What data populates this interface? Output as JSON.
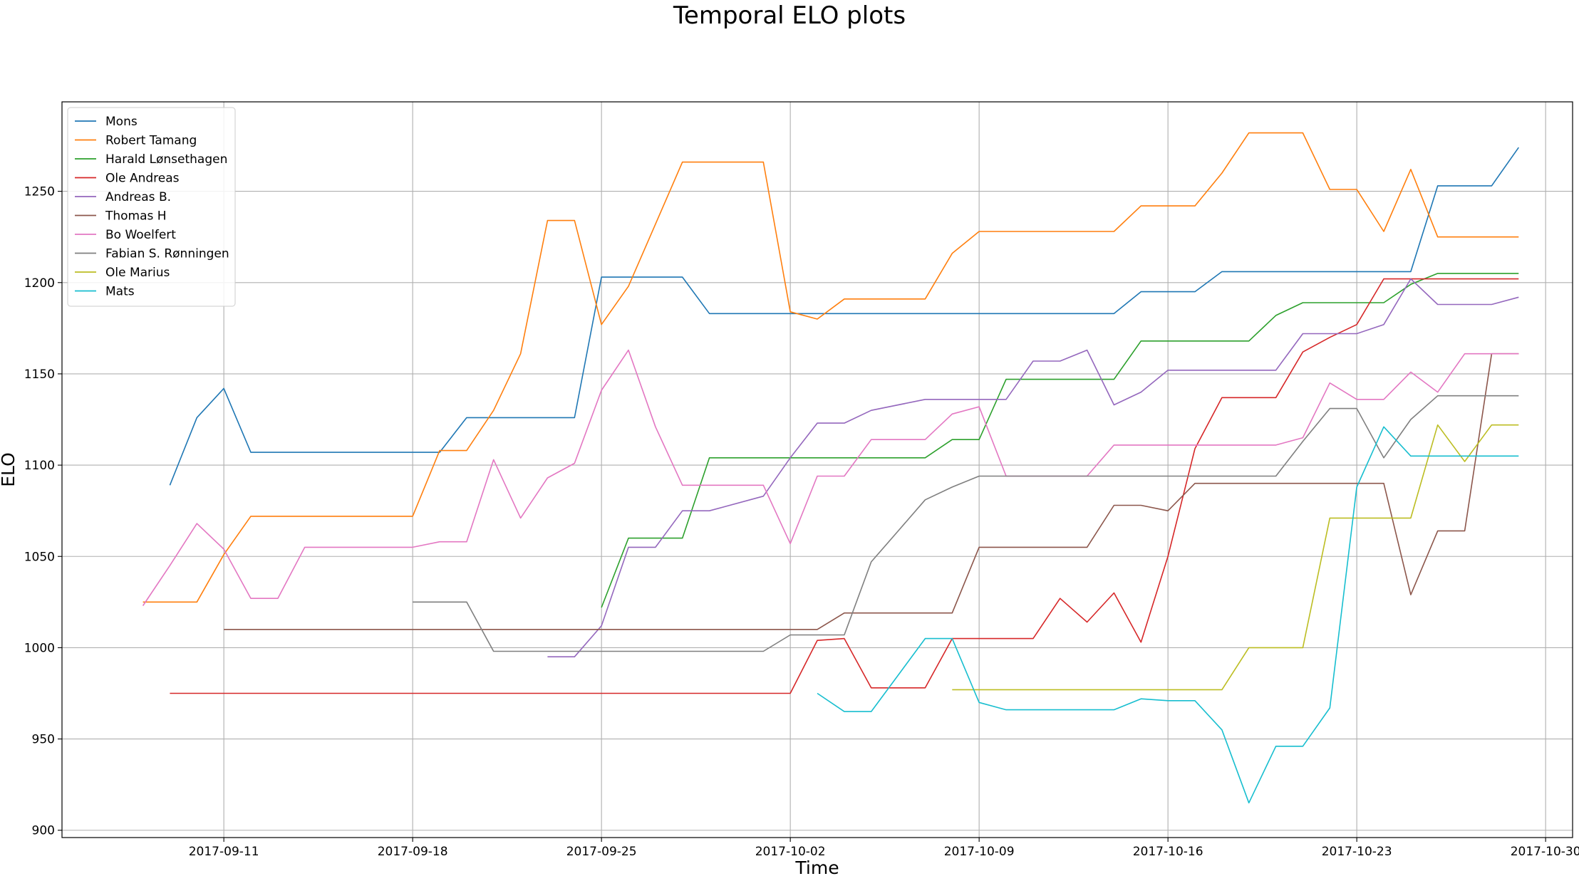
{
  "chart_data": {
    "type": "line",
    "title": "Temporal ELO plots",
    "xlabel": "Time",
    "ylabel": "ELO",
    "x_axis_type": "date",
    "xlim": [
      "2017-09-05",
      "2017-10-31"
    ],
    "ylim": [
      896,
      1299
    ],
    "x_ticks": [
      "2017-09-11",
      "2017-09-18",
      "2017-09-25",
      "2017-10-02",
      "2017-10-09",
      "2017-10-16",
      "2017-10-23",
      "2017-10-30"
    ],
    "y_ticks": [
      900,
      950,
      1000,
      1050,
      1100,
      1150,
      1200,
      1250
    ],
    "grid": true,
    "legend_position": "top-left",
    "series": [
      {
        "name": "Mons",
        "color": "#1f77b4",
        "points": [
          [
            "2017-09-09",
            1089
          ],
          [
            "2017-09-10",
            1126
          ],
          [
            "2017-09-11",
            1142
          ],
          [
            "2017-09-12",
            1107
          ],
          [
            "2017-09-19",
            1107
          ],
          [
            "2017-09-20",
            1126
          ],
          [
            "2017-09-24",
            1126
          ],
          [
            "2017-09-25",
            1203
          ],
          [
            "2017-09-28",
            1203
          ],
          [
            "2017-09-29",
            1183
          ],
          [
            "2017-10-14",
            1183
          ],
          [
            "2017-10-15",
            1195
          ],
          [
            "2017-10-17",
            1195
          ],
          [
            "2017-10-18",
            1206
          ],
          [
            "2017-10-25",
            1206
          ],
          [
            "2017-10-26",
            1253
          ],
          [
            "2017-10-28",
            1253
          ],
          [
            "2017-10-29",
            1274
          ]
        ]
      },
      {
        "name": "Robert Tamang",
        "color": "#ff7f0e",
        "points": [
          [
            "2017-09-08",
            1025
          ],
          [
            "2017-09-10",
            1025
          ],
          [
            "2017-09-11",
            1051
          ],
          [
            "2017-09-12",
            1072
          ],
          [
            "2017-09-18",
            1072
          ],
          [
            "2017-09-19",
            1108
          ],
          [
            "2017-09-20",
            1108
          ],
          [
            "2017-09-21",
            1130
          ],
          [
            "2017-09-22",
            1161
          ],
          [
            "2017-09-23",
            1234
          ],
          [
            "2017-09-24",
            1234
          ],
          [
            "2017-09-25",
            1177
          ],
          [
            "2017-09-26",
            1198
          ],
          [
            "2017-09-27",
            1232
          ],
          [
            "2017-09-28",
            1266
          ],
          [
            "2017-10-01",
            1266
          ],
          [
            "2017-10-02",
            1184
          ],
          [
            "2017-10-03",
            1180
          ],
          [
            "2017-10-04",
            1191
          ],
          [
            "2017-10-07",
            1191
          ],
          [
            "2017-10-08",
            1216
          ],
          [
            "2017-10-09",
            1228
          ],
          [
            "2017-10-14",
            1228
          ],
          [
            "2017-10-15",
            1242
          ],
          [
            "2017-10-17",
            1242
          ],
          [
            "2017-10-18",
            1260
          ],
          [
            "2017-10-19",
            1282
          ],
          [
            "2017-10-21",
            1282
          ],
          [
            "2017-10-22",
            1251
          ],
          [
            "2017-10-23",
            1251
          ],
          [
            "2017-10-24",
            1228
          ],
          [
            "2017-10-25",
            1262
          ],
          [
            "2017-10-26",
            1225
          ],
          [
            "2017-10-29",
            1225
          ]
        ]
      },
      {
        "name": "Harald Lønsethagen",
        "color": "#2ca02c",
        "points": [
          [
            "2017-09-25",
            1022
          ],
          [
            "2017-09-26",
            1060
          ],
          [
            "2017-09-28",
            1060
          ],
          [
            "2017-09-29",
            1104
          ],
          [
            "2017-10-07",
            1104
          ],
          [
            "2017-10-08",
            1114
          ],
          [
            "2017-10-09",
            1114
          ],
          [
            "2017-10-10",
            1147
          ],
          [
            "2017-10-14",
            1147
          ],
          [
            "2017-10-15",
            1168
          ],
          [
            "2017-10-19",
            1168
          ],
          [
            "2017-10-20",
            1182
          ],
          [
            "2017-10-21",
            1189
          ],
          [
            "2017-10-24",
            1189
          ],
          [
            "2017-10-25",
            1199
          ],
          [
            "2017-10-26",
            1205
          ],
          [
            "2017-10-29",
            1205
          ]
        ]
      },
      {
        "name": "Ole Andreas",
        "color": "#d62728",
        "points": [
          [
            "2017-09-09",
            975
          ],
          [
            "2017-10-02",
            975
          ],
          [
            "2017-10-03",
            1004
          ],
          [
            "2017-10-04",
            1005
          ],
          [
            "2017-10-05",
            978
          ],
          [
            "2017-10-07",
            978
          ],
          [
            "2017-10-08",
            1005
          ],
          [
            "2017-10-11",
            1005
          ],
          [
            "2017-10-12",
            1027
          ],
          [
            "2017-10-13",
            1014
          ],
          [
            "2017-10-14",
            1030
          ],
          [
            "2017-10-15",
            1003
          ],
          [
            "2017-10-16",
            1050
          ],
          [
            "2017-10-17",
            1109
          ],
          [
            "2017-10-18",
            1137
          ],
          [
            "2017-10-20",
            1137
          ],
          [
            "2017-10-21",
            1162
          ],
          [
            "2017-10-22",
            1170
          ],
          [
            "2017-10-23",
            1177
          ],
          [
            "2017-10-24",
            1202
          ],
          [
            "2017-10-29",
            1202
          ]
        ]
      },
      {
        "name": "Andreas B.",
        "color": "#9467bd",
        "points": [
          [
            "2017-09-23",
            995
          ],
          [
            "2017-09-24",
            995
          ],
          [
            "2017-09-25",
            1012
          ],
          [
            "2017-09-26",
            1055
          ],
          [
            "2017-09-27",
            1055
          ],
          [
            "2017-09-28",
            1075
          ],
          [
            "2017-09-29",
            1075
          ],
          [
            "2017-10-01",
            1083
          ],
          [
            "2017-10-02",
            1104
          ],
          [
            "2017-10-03",
            1123
          ],
          [
            "2017-10-04",
            1123
          ],
          [
            "2017-10-05",
            1130
          ],
          [
            "2017-10-07",
            1136
          ],
          [
            "2017-10-10",
            1136
          ],
          [
            "2017-10-11",
            1157
          ],
          [
            "2017-10-12",
            1157
          ],
          [
            "2017-10-13",
            1163
          ],
          [
            "2017-10-14",
            1133
          ],
          [
            "2017-10-15",
            1140
          ],
          [
            "2017-10-16",
            1152
          ],
          [
            "2017-10-20",
            1152
          ],
          [
            "2017-10-21",
            1172
          ],
          [
            "2017-10-23",
            1172
          ],
          [
            "2017-10-24",
            1177
          ],
          [
            "2017-10-25",
            1202
          ],
          [
            "2017-10-26",
            1188
          ],
          [
            "2017-10-28",
            1188
          ],
          [
            "2017-10-29",
            1192
          ]
        ]
      },
      {
        "name": "Thomas H",
        "color": "#8c564b",
        "points": [
          [
            "2017-09-11",
            1010
          ],
          [
            "2017-10-03",
            1010
          ],
          [
            "2017-10-04",
            1019
          ],
          [
            "2017-10-08",
            1019
          ],
          [
            "2017-10-09",
            1055
          ],
          [
            "2017-10-13",
            1055
          ],
          [
            "2017-10-14",
            1078
          ],
          [
            "2017-10-15",
            1078
          ],
          [
            "2017-10-16",
            1075
          ],
          [
            "2017-10-17",
            1090
          ],
          [
            "2017-10-24",
            1090
          ],
          [
            "2017-10-25",
            1029
          ],
          [
            "2017-10-26",
            1064
          ],
          [
            "2017-10-27",
            1064
          ],
          [
            "2017-10-28",
            1161
          ],
          [
            "2017-10-29",
            1161
          ]
        ]
      },
      {
        "name": "Bo Woelfert",
        "color": "#e377c2",
        "points": [
          [
            "2017-09-08",
            1023
          ],
          [
            "2017-09-09",
            1045
          ],
          [
            "2017-09-10",
            1068
          ],
          [
            "2017-09-11",
            1054
          ],
          [
            "2017-09-12",
            1027
          ],
          [
            "2017-09-13",
            1027
          ],
          [
            "2017-09-14",
            1055
          ],
          [
            "2017-09-18",
            1055
          ],
          [
            "2017-09-19",
            1058
          ],
          [
            "2017-09-20",
            1058
          ],
          [
            "2017-09-21",
            1103
          ],
          [
            "2017-09-22",
            1071
          ],
          [
            "2017-09-23",
            1093
          ],
          [
            "2017-09-24",
            1101
          ],
          [
            "2017-09-25",
            1141
          ],
          [
            "2017-09-26",
            1163
          ],
          [
            "2017-09-27",
            1121
          ],
          [
            "2017-09-28",
            1089
          ],
          [
            "2017-10-01",
            1089
          ],
          [
            "2017-10-02",
            1057
          ],
          [
            "2017-10-03",
            1094
          ],
          [
            "2017-10-04",
            1094
          ],
          [
            "2017-10-05",
            1114
          ],
          [
            "2017-10-07",
            1114
          ],
          [
            "2017-10-08",
            1128
          ],
          [
            "2017-10-09",
            1132
          ],
          [
            "2017-10-10",
            1094
          ],
          [
            "2017-10-13",
            1094
          ],
          [
            "2017-10-14",
            1111
          ],
          [
            "2017-10-20",
            1111
          ],
          [
            "2017-10-21",
            1115
          ],
          [
            "2017-10-22",
            1145
          ],
          [
            "2017-10-23",
            1136
          ],
          [
            "2017-10-24",
            1136
          ],
          [
            "2017-10-25",
            1151
          ],
          [
            "2017-10-26",
            1140
          ],
          [
            "2017-10-27",
            1161
          ],
          [
            "2017-10-29",
            1161
          ]
        ]
      },
      {
        "name": "Fabian S. Rønningen",
        "color": "#7f7f7f",
        "points": [
          [
            "2017-09-18",
            1025
          ],
          [
            "2017-09-20",
            1025
          ],
          [
            "2017-09-21",
            998
          ],
          [
            "2017-10-01",
            998
          ],
          [
            "2017-10-02",
            1007
          ],
          [
            "2017-10-04",
            1007
          ],
          [
            "2017-10-05",
            1047
          ],
          [
            "2017-10-06",
            1064
          ],
          [
            "2017-10-07",
            1081
          ],
          [
            "2017-10-08",
            1088
          ],
          [
            "2017-10-09",
            1094
          ],
          [
            "2017-10-20",
            1094
          ],
          [
            "2017-10-21",
            1113
          ],
          [
            "2017-10-22",
            1131
          ],
          [
            "2017-10-23",
            1131
          ],
          [
            "2017-10-24",
            1104
          ],
          [
            "2017-10-25",
            1125
          ],
          [
            "2017-10-26",
            1138
          ],
          [
            "2017-10-29",
            1138
          ]
        ]
      },
      {
        "name": "Ole Marius",
        "color": "#bcbd22",
        "points": [
          [
            "2017-10-08",
            977
          ],
          [
            "2017-10-18",
            977
          ],
          [
            "2017-10-19",
            1000
          ],
          [
            "2017-10-21",
            1000
          ],
          [
            "2017-10-22",
            1071
          ],
          [
            "2017-10-25",
            1071
          ],
          [
            "2017-10-26",
            1122
          ],
          [
            "2017-10-27",
            1102
          ],
          [
            "2017-10-28",
            1122
          ],
          [
            "2017-10-29",
            1122
          ]
        ]
      },
      {
        "name": "Mats",
        "color": "#17becf",
        "points": [
          [
            "2017-10-03",
            975
          ],
          [
            "2017-10-04",
            965
          ],
          [
            "2017-10-05",
            965
          ],
          [
            "2017-10-06",
            985
          ],
          [
            "2017-10-07",
            1005
          ],
          [
            "2017-10-08",
            1005
          ],
          [
            "2017-10-09",
            970
          ],
          [
            "2017-10-10",
            966
          ],
          [
            "2017-10-14",
            966
          ],
          [
            "2017-10-15",
            972
          ],
          [
            "2017-10-16",
            971
          ],
          [
            "2017-10-17",
            971
          ],
          [
            "2017-10-18",
            955
          ],
          [
            "2017-10-19",
            915
          ],
          [
            "2017-10-20",
            946
          ],
          [
            "2017-10-21",
            946
          ],
          [
            "2017-10-22",
            967
          ],
          [
            "2017-10-23",
            1088
          ],
          [
            "2017-10-24",
            1121
          ],
          [
            "2017-10-25",
            1105
          ],
          [
            "2017-10-29",
            1105
          ]
        ]
      }
    ]
  }
}
